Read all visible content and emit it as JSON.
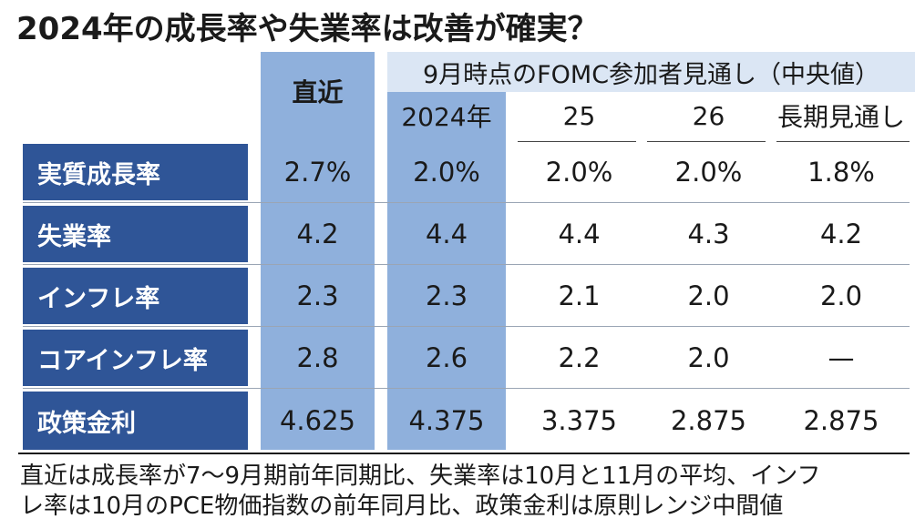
{
  "title": "2024年の成長率や失業率は改善が確実？",
  "chart_data": {
    "type": "table",
    "header": {
      "latest": "直近",
      "projection_group": "9月時点のFOMC参加者見通し（中央値）",
      "columns": [
        "2024年",
        "25",
        "26",
        "長期見通し"
      ]
    },
    "rows": [
      {
        "label": "実質成長率",
        "values": [
          "2.7%",
          "2.0%",
          "2.0%",
          "2.0%",
          "1.8%"
        ]
      },
      {
        "label": "失業率",
        "values": [
          "4.2",
          "4.4",
          "4.4",
          "4.3",
          "4.2"
        ]
      },
      {
        "label": "インフレ率",
        "values": [
          "2.3",
          "2.3",
          "2.1",
          "2.0",
          "2.0"
        ]
      },
      {
        "label": "コアインフレ率",
        "values": [
          "2.8",
          "2.6",
          "2.2",
          "2.0",
          "—"
        ]
      },
      {
        "label": "政策金利",
        "values": [
          "4.625",
          "4.375",
          "3.375",
          "2.875",
          "2.875"
        ]
      }
    ]
  },
  "note": {
    "line1": "直近は成長率が7～9月期前年同期比、失業率は10月と11月の平均、インフ",
    "line2": "レ率は10月のPCE物価指数の前年同月比、政策金利は原則レンジ中間値"
  },
  "colors": {
    "row_label_bg": "#2f5597",
    "highlight_col_bg": "#8fb0dc",
    "header_band_bg": "#dbe6f4"
  }
}
